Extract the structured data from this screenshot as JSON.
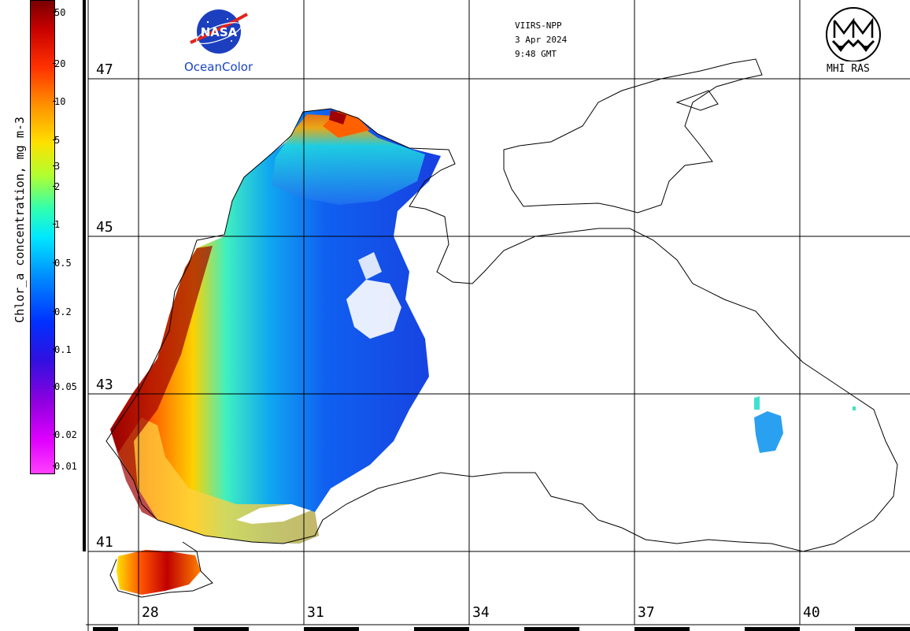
{
  "header": {
    "sensor": "VIIRS-NPP",
    "date": "3 Apr 2024",
    "time": "9:48 GMT"
  },
  "logos": {
    "nasa_text": "NASA",
    "oceancolor_text": "OceanColor",
    "mhi_text": "MHI RAS"
  },
  "colorbar": {
    "title": "Chlor_a concentration, mg m-3",
    "ticks": [
      "50",
      "20",
      "10",
      "5",
      "3",
      "2",
      "1",
      "0.5",
      "0.2",
      "0.1",
      "0.05",
      "0.02",
      "0.01"
    ]
  },
  "grid": {
    "latitudes": [
      "47",
      "45",
      "43",
      "41"
    ],
    "longitudes": [
      "28",
      "31",
      "34",
      "37",
      "40"
    ]
  },
  "colors": {
    "ocean_high": "#b00000",
    "ocean_mid": "#ffd000",
    "ocean_low": "#1060f0",
    "coast": "#000000"
  }
}
